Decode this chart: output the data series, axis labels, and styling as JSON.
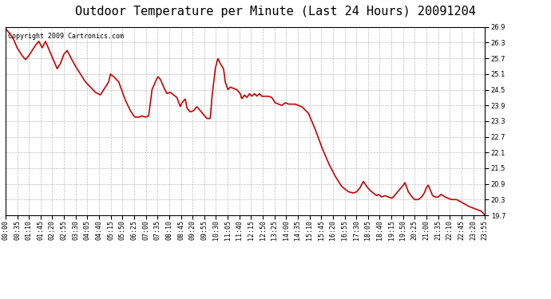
{
  "title": "Outdoor Temperature per Minute (Last 24 Hours) 20091204",
  "copyright_text": "Copyright 2009 Cartronics.com",
  "line_color": "#cc0000",
  "background_color": "#ffffff",
  "plot_background": "#ffffff",
  "grid_color": "#bbbbbb",
  "ylim": [
    19.7,
    26.9
  ],
  "yticks": [
    19.7,
    20.3,
    20.9,
    21.5,
    22.1,
    22.7,
    23.3,
    23.9,
    24.5,
    25.1,
    25.7,
    26.3,
    26.9
  ],
  "xtick_labels": [
    "00:00",
    "00:35",
    "01:10",
    "01:45",
    "02:20",
    "02:55",
    "03:30",
    "04:05",
    "04:40",
    "05:15",
    "05:50",
    "06:25",
    "07:00",
    "07:35",
    "08:10",
    "08:45",
    "09:20",
    "09:55",
    "10:30",
    "11:05",
    "11:40",
    "12:15",
    "12:50",
    "13:25",
    "14:00",
    "14:35",
    "15:10",
    "15:45",
    "16:20",
    "16:55",
    "17:30",
    "18:05",
    "18:40",
    "19:15",
    "19:50",
    "20:25",
    "21:00",
    "21:35",
    "22:10",
    "22:45",
    "23:20",
    "23:55"
  ],
  "title_fontsize": 11,
  "copyright_fontsize": 6,
  "tick_fontsize": 6,
  "line_width": 1.2,
  "waypoints": [
    [
      0,
      26.85
    ],
    [
      15,
      26.6
    ],
    [
      25,
      26.4
    ],
    [
      35,
      26.1
    ],
    [
      50,
      25.8
    ],
    [
      60,
      25.65
    ],
    [
      70,
      25.8
    ],
    [
      80,
      26.0
    ],
    [
      90,
      26.2
    ],
    [
      100,
      26.35
    ],
    [
      110,
      26.1
    ],
    [
      120,
      26.35
    ],
    [
      130,
      26.05
    ],
    [
      145,
      25.6
    ],
    [
      155,
      25.3
    ],
    [
      165,
      25.5
    ],
    [
      175,
      25.85
    ],
    [
      185,
      26.0
    ],
    [
      195,
      25.75
    ],
    [
      210,
      25.4
    ],
    [
      225,
      25.1
    ],
    [
      240,
      24.8
    ],
    [
      255,
      24.6
    ],
    [
      270,
      24.4
    ],
    [
      285,
      24.3
    ],
    [
      300,
      24.6
    ],
    [
      310,
      24.8
    ],
    [
      315,
      25.1
    ],
    [
      325,
      25.0
    ],
    [
      340,
      24.8
    ],
    [
      360,
      24.1
    ],
    [
      375,
      23.7
    ],
    [
      385,
      23.5
    ],
    [
      390,
      23.45
    ],
    [
      400,
      23.45
    ],
    [
      410,
      23.5
    ],
    [
      420,
      23.45
    ],
    [
      430,
      23.5
    ],
    [
      440,
      24.5
    ],
    [
      450,
      24.8
    ],
    [
      458,
      25.0
    ],
    [
      465,
      24.9
    ],
    [
      475,
      24.6
    ],
    [
      485,
      24.35
    ],
    [
      495,
      24.4
    ],
    [
      505,
      24.3
    ],
    [
      515,
      24.2
    ],
    [
      525,
      23.85
    ],
    [
      530,
      24.0
    ],
    [
      540,
      24.15
    ],
    [
      545,
      23.8
    ],
    [
      555,
      23.65
    ],
    [
      565,
      23.7
    ],
    [
      575,
      23.85
    ],
    [
      585,
      23.7
    ],
    [
      595,
      23.55
    ],
    [
      605,
      23.4
    ],
    [
      615,
      23.4
    ],
    [
      620,
      24.2
    ],
    [
      630,
      25.3
    ],
    [
      638,
      25.7
    ],
    [
      645,
      25.5
    ],
    [
      655,
      25.3
    ],
    [
      660,
      24.8
    ],
    [
      668,
      24.5
    ],
    [
      675,
      24.6
    ],
    [
      685,
      24.55
    ],
    [
      695,
      24.5
    ],
    [
      705,
      24.35
    ],
    [
      710,
      24.15
    ],
    [
      718,
      24.3
    ],
    [
      725,
      24.2
    ],
    [
      733,
      24.35
    ],
    [
      740,
      24.25
    ],
    [
      748,
      24.35
    ],
    [
      755,
      24.25
    ],
    [
      763,
      24.35
    ],
    [
      770,
      24.25
    ],
    [
      780,
      24.25
    ],
    [
      790,
      24.25
    ],
    [
      800,
      24.2
    ],
    [
      810,
      24.0
    ],
    [
      820,
      23.95
    ],
    [
      830,
      23.9
    ],
    [
      840,
      24.0
    ],
    [
      850,
      23.95
    ],
    [
      860,
      23.95
    ],
    [
      870,
      23.95
    ],
    [
      890,
      23.85
    ],
    [
      910,
      23.6
    ],
    [
      930,
      23.0
    ],
    [
      950,
      22.3
    ],
    [
      970,
      21.7
    ],
    [
      990,
      21.2
    ],
    [
      1010,
      20.8
    ],
    [
      1030,
      20.6
    ],
    [
      1045,
      20.55
    ],
    [
      1055,
      20.6
    ],
    [
      1065,
      20.75
    ],
    [
      1075,
      21.0
    ],
    [
      1085,
      20.8
    ],
    [
      1095,
      20.65
    ],
    [
      1105,
      20.55
    ],
    [
      1115,
      20.45
    ],
    [
      1120,
      20.5
    ],
    [
      1130,
      20.4
    ],
    [
      1140,
      20.45
    ],
    [
      1150,
      20.4
    ],
    [
      1160,
      20.35
    ],
    [
      1165,
      20.4
    ],
    [
      1175,
      20.55
    ],
    [
      1185,
      20.7
    ],
    [
      1195,
      20.85
    ],
    [
      1200,
      20.95
    ],
    [
      1210,
      20.6
    ],
    [
      1218,
      20.45
    ],
    [
      1225,
      20.35
    ],
    [
      1230,
      20.3
    ],
    [
      1240,
      20.3
    ],
    [
      1250,
      20.4
    ],
    [
      1258,
      20.55
    ],
    [
      1264,
      20.75
    ],
    [
      1270,
      20.85
    ],
    [
      1278,
      20.6
    ],
    [
      1283,
      20.45
    ],
    [
      1290,
      20.4
    ],
    [
      1300,
      20.4
    ],
    [
      1308,
      20.5
    ],
    [
      1315,
      20.45
    ],
    [
      1320,
      20.4
    ],
    [
      1330,
      20.35
    ],
    [
      1340,
      20.3
    ],
    [
      1355,
      20.3
    ],
    [
      1370,
      20.2
    ],
    [
      1390,
      20.05
    ],
    [
      1410,
      19.95
    ],
    [
      1430,
      19.85
    ],
    [
      1440,
      19.7
    ]
  ]
}
